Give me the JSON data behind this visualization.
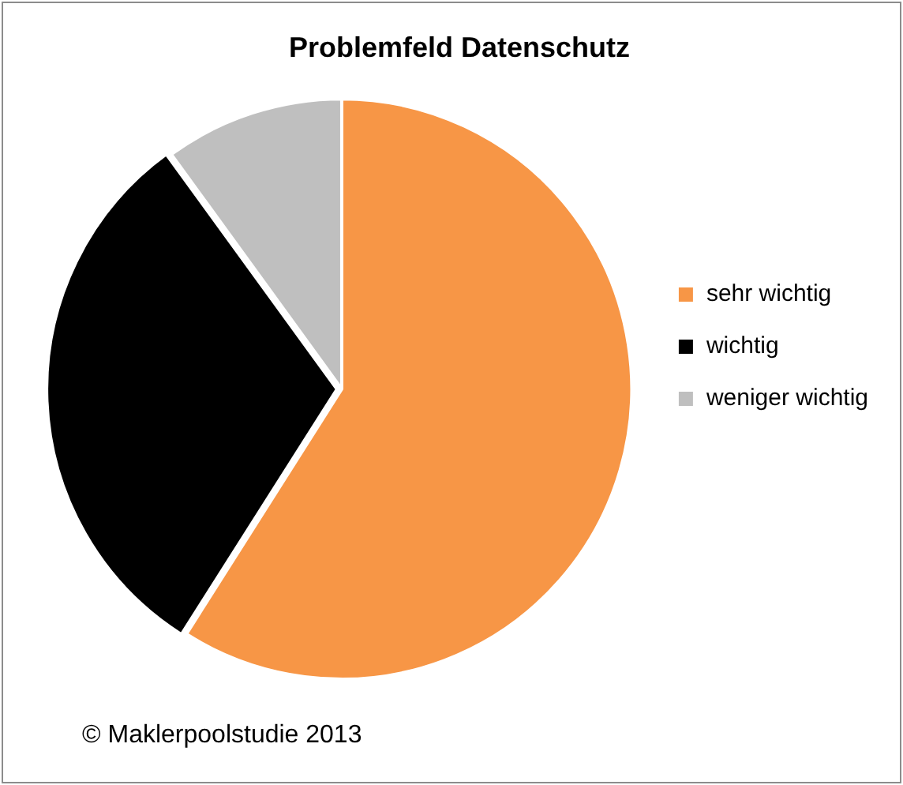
{
  "chart_data": {
    "type": "pie",
    "title": "Problemfeld Datenschutz",
    "categories": [
      "sehr wichtig",
      "wichtig",
      "weniger wichtig"
    ],
    "values": [
      59,
      31,
      10
    ],
    "colors": [
      "#f79646",
      "#000000",
      "#bfbfbf"
    ],
    "legend": "right",
    "annotations": [
      "© Maklerpoolstudie 2013"
    ]
  }
}
